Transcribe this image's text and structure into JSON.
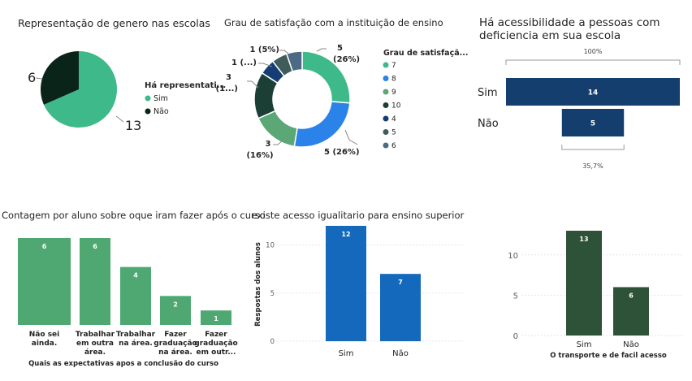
{
  "colors": {
    "pie_sim": "#3db98a",
    "pie_nao": "#0b241a",
    "funnel": "#133e6e",
    "green_bar": "#4fa872",
    "blue_bar": "#1469bc",
    "dark_green_bar": "#2e5237"
  },
  "chart_data": [
    {
      "type": "pie",
      "title": "Representação de genero nas escolas",
      "legend_title": "Há representati...",
      "legend_position": "right",
      "categories": [
        "Sim",
        "Não"
      ],
      "values": [
        13,
        6
      ],
      "data_labels": [
        "13",
        "6"
      ],
      "colors": [
        "#3db98a",
        "#0b241a"
      ]
    },
    {
      "type": "pie",
      "subtype": "donut",
      "title": "Grau de satisfação com a instituição de ensino",
      "legend_title": "Grau de satisfaçã...",
      "legend_position": "right",
      "categories": [
        "7",
        "8",
        "9",
        "10",
        "4",
        "5",
        "6"
      ],
      "values": [
        5,
        5,
        3,
        3,
        1,
        1,
        1
      ],
      "data_labels": [
        "5\n(26%)",
        "5 (26%)",
        "3\n(16%)",
        "3\n(1...)",
        "1 (...)",
        "1 (5%)",
        ""
      ],
      "colors": [
        "#3db98a",
        "#2b82e8",
        "#5ba776",
        "#1c3f35",
        "#153d73",
        "#3f5c5a",
        "#4c6a85"
      ]
    },
    {
      "type": "bar",
      "subtype": "funnel",
      "title": "Há acessibilidade a pessoas com deficiencia em sua escola",
      "categories": [
        "Sim",
        "Não"
      ],
      "values": [
        14,
        5
      ],
      "top_label": "100%",
      "bottom_label": "35,7%",
      "color": "#133e6e"
    },
    {
      "type": "bar",
      "title": "Contagem por aluno sobre oque iram fazer após o curso",
      "xlabel": "Quais as expectativas apos a conclusão do curso",
      "ylabel": "",
      "categories": [
        [
          "Não sei",
          "ainda."
        ],
        [
          "Trabalhar",
          "em outra",
          "área."
        ],
        [
          "Trabalhar",
          "na área."
        ],
        [
          "Fazer",
          "graduação",
          "na área."
        ],
        [
          "Fazer",
          "graduação",
          "em outr..."
        ]
      ],
      "values": [
        6,
        6,
        4,
        2,
        1
      ],
      "grid": false,
      "color": "#4fa872"
    },
    {
      "type": "bar",
      "title": "existe acesso igualitario para ensino superior",
      "xlabel": "",
      "ylabel": "Respostas dos alunos",
      "categories": [
        "Sim",
        "Não"
      ],
      "values": [
        12,
        7
      ],
      "yticks": [
        0,
        5,
        10
      ],
      "ylim": [
        0,
        12
      ],
      "color": "#1469bc"
    },
    {
      "type": "bar",
      "title": "",
      "xlabel": "O transporte e de facil acesso",
      "ylabel": "",
      "categories": [
        "Sim",
        "Não"
      ],
      "values": [
        13,
        6
      ],
      "yticks": [
        0,
        5,
        10
      ],
      "ylim": [
        0,
        13
      ],
      "color": "#2e5237"
    }
  ]
}
